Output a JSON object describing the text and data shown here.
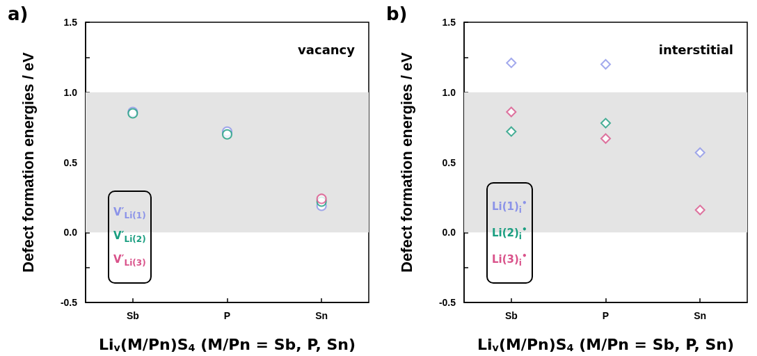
{
  "chart_data": [
    {
      "type": "scatter",
      "title": "a)",
      "annotations": [
        "vacancy"
      ],
      "xlabel": "Li$_{v}$(M/Pn)S$_{4}$ (M/Pn = Sb, P, Sn)",
      "ylabel": "Defect formation energies / eV",
      "categories": [
        "Sb",
        "P",
        "Sn"
      ],
      "series": [
        {
          "name": "V′$_{Li(1)}$",
          "color": "#8b93e8",
          "values": [
            0.86,
            0.72,
            0.19
          ]
        },
        {
          "name": "V′$_{Li(2)}$",
          "color": "#1a9e80",
          "values": [
            0.85,
            0.7,
            0.22
          ]
        },
        {
          "name": "V′$_{Li(3)}$",
          "color": "#d9528a",
          "values": [
            null,
            null,
            0.24
          ]
        }
      ],
      "ylim": [
        -0.5,
        1.5
      ],
      "yticks": [
        {
          "value": -0.5,
          "label": "-0.5"
        },
        {
          "value": -0.25,
          "label": null
        },
        {
          "value": 0,
          "label": "0.0"
        },
        {
          "value": 0.25,
          "label": null
        },
        {
          "value": 0.5,
          "label": "0.5"
        },
        {
          "value": 0.75,
          "label": null
        },
        {
          "value": 1,
          "label": "1.0"
        },
        {
          "value": 1.25,
          "label": null
        },
        {
          "value": 1.5,
          "label": "1.5"
        }
      ],
      "bands": [
        {
          "axis": "y",
          "from": 0,
          "to": 1,
          "color": "#e4e4e4"
        }
      ],
      "marker": "circle",
      "grid": false,
      "legend": "bottom left"
    },
    {
      "type": "scatter",
      "title": "b)",
      "annotations": [
        "interstitial"
      ],
      "xlabel": "Li$_{v}$(M/Pn)S$_{4}$ (M/Pn = Sb, P, Sn)",
      "ylabel": "Defect formation energies / eV",
      "categories": [
        "Sb",
        "P",
        "Sn"
      ],
      "series": [
        {
          "name": "Li(1)$_{i}$$^{•}$",
          "color": "#8b93e8",
          "values": [
            1.21,
            1.2,
            0.57
          ]
        },
        {
          "name": "Li(2)$_{i}$$^{•}$",
          "color": "#1a9e80",
          "values": [
            0.72,
            0.78,
            null
          ]
        },
        {
          "name": "Li(3)$_{i}$$^{•}$",
          "color": "#d9528a",
          "values": [
            0.86,
            0.67,
            0.16
          ]
        }
      ],
      "ylim": [
        -0.5,
        1.5
      ],
      "yticks": [
        {
          "value": -0.5,
          "label": "-0.5"
        },
        {
          "value": -0.25,
          "label": null
        },
        {
          "value": 0,
          "label": "0.0"
        },
        {
          "value": 0.25,
          "label": null
        },
        {
          "value": 0.5,
          "label": "0.5"
        },
        {
          "value": 0.75,
          "label": null
        },
        {
          "value": 1,
          "label": "1.0"
        },
        {
          "value": 1.25,
          "label": null
        },
        {
          "value": 1.5,
          "label": "1.5"
        }
      ],
      "bands": [
        {
          "axis": "y",
          "from": 0,
          "to": 1,
          "color": "#e4e4e4"
        }
      ],
      "marker": "diamond",
      "grid": false,
      "legend": "bottom left"
    }
  ]
}
